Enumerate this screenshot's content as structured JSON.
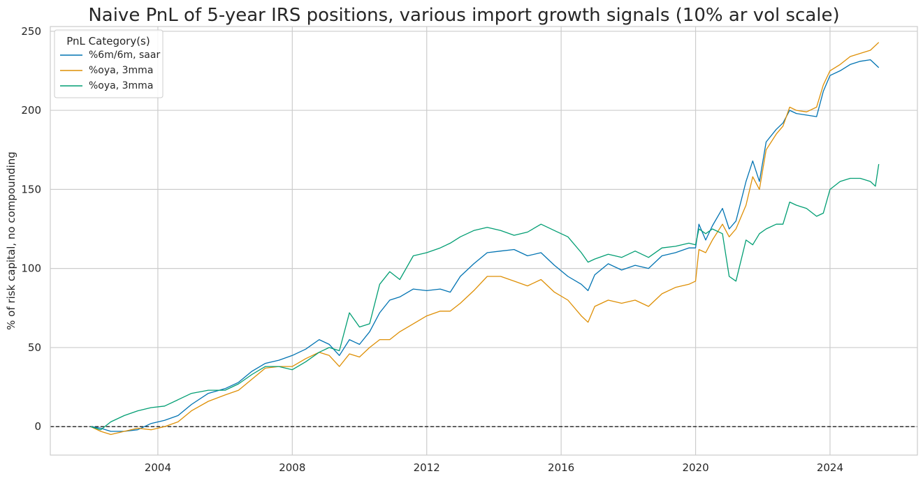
{
  "chart_data": {
    "type": "line",
    "title": "Naive PnL of 5-year IRS positions, various import growth signals (10% ar vol scale)",
    "xlabel": "",
    "ylabel": "% of risk capital, no compounding",
    "xlim": [
      2000.8,
      2026.6
    ],
    "ylim": [
      -18,
      253
    ],
    "x_ticks": [
      2004,
      2008,
      2012,
      2016,
      2020,
      2024
    ],
    "x_tick_labels": [
      "2004",
      "2008",
      "2012",
      "2016",
      "2020",
      "2024"
    ],
    "y_ticks": [
      0,
      50,
      100,
      150,
      200,
      250
    ],
    "y_tick_labels": [
      "0",
      "50",
      "100",
      "150",
      "200",
      "250"
    ],
    "grid": true,
    "zero_line": true,
    "legend": {
      "title": "PnL Category(s)",
      "position": "top-left"
    },
    "series": [
      {
        "name": "%6m/6m, saar",
        "color": "#0173b2",
        "points": [
          [
            2002.0,
            0
          ],
          [
            2002.3,
            -1
          ],
          [
            2002.6,
            -3
          ],
          [
            2003.0,
            -3
          ],
          [
            2003.4,
            -2
          ],
          [
            2003.8,
            2
          ],
          [
            2004.2,
            4
          ],
          [
            2004.6,
            7
          ],
          [
            2005.0,
            14
          ],
          [
            2005.5,
            21
          ],
          [
            2006.0,
            24
          ],
          [
            2006.4,
            28
          ],
          [
            2006.8,
            35
          ],
          [
            2007.2,
            40
          ],
          [
            2007.6,
            42
          ],
          [
            2008.0,
            45
          ],
          [
            2008.4,
            49
          ],
          [
            2008.8,
            55
          ],
          [
            2009.1,
            52
          ],
          [
            2009.4,
            45
          ],
          [
            2009.7,
            55
          ],
          [
            2010.0,
            52
          ],
          [
            2010.3,
            60
          ],
          [
            2010.6,
            72
          ],
          [
            2010.9,
            80
          ],
          [
            2011.2,
            82
          ],
          [
            2011.6,
            87
          ],
          [
            2012.0,
            86
          ],
          [
            2012.4,
            87
          ],
          [
            2012.7,
            85
          ],
          [
            2013.0,
            95
          ],
          [
            2013.4,
            103
          ],
          [
            2013.8,
            110
          ],
          [
            2014.2,
            111
          ],
          [
            2014.6,
            112
          ],
          [
            2015.0,
            108
          ],
          [
            2015.4,
            110
          ],
          [
            2015.8,
            102
          ],
          [
            2016.2,
            95
          ],
          [
            2016.6,
            90
          ],
          [
            2016.8,
            86
          ],
          [
            2017.0,
            96
          ],
          [
            2017.4,
            103
          ],
          [
            2017.8,
            99
          ],
          [
            2018.2,
            102
          ],
          [
            2018.6,
            100
          ],
          [
            2019.0,
            108
          ],
          [
            2019.4,
            110
          ],
          [
            2019.8,
            113
          ],
          [
            2020.0,
            113
          ],
          [
            2020.1,
            128
          ],
          [
            2020.3,
            118
          ],
          [
            2020.5,
            127
          ],
          [
            2020.8,
            138
          ],
          [
            2021.0,
            125
          ],
          [
            2021.2,
            130
          ],
          [
            2021.5,
            155
          ],
          [
            2021.7,
            168
          ],
          [
            2021.9,
            155
          ],
          [
            2022.1,
            180
          ],
          [
            2022.4,
            188
          ],
          [
            2022.6,
            192
          ],
          [
            2022.8,
            200
          ],
          [
            2023.0,
            198
          ],
          [
            2023.3,
            197
          ],
          [
            2023.6,
            196
          ],
          [
            2023.8,
            212
          ],
          [
            2024.0,
            222
          ],
          [
            2024.3,
            225
          ],
          [
            2024.6,
            229
          ],
          [
            2024.9,
            231
          ],
          [
            2025.2,
            232
          ],
          [
            2025.45,
            227
          ]
        ]
      },
      {
        "name": "%oya, 3mma",
        "color": "#de8f05",
        "points": [
          [
            2002.0,
            0
          ],
          [
            2002.3,
            -3
          ],
          [
            2002.6,
            -5
          ],
          [
            2003.0,
            -3
          ],
          [
            2003.4,
            -1
          ],
          [
            2003.8,
            -2
          ],
          [
            2004.2,
            0
          ],
          [
            2004.6,
            3
          ],
          [
            2005.0,
            10
          ],
          [
            2005.5,
            16
          ],
          [
            2006.0,
            20
          ],
          [
            2006.4,
            23
          ],
          [
            2006.8,
            30
          ],
          [
            2007.2,
            37
          ],
          [
            2007.6,
            38
          ],
          [
            2008.0,
            38
          ],
          [
            2008.4,
            43
          ],
          [
            2008.8,
            47
          ],
          [
            2009.1,
            45
          ],
          [
            2009.4,
            38
          ],
          [
            2009.7,
            46
          ],
          [
            2010.0,
            44
          ],
          [
            2010.3,
            50
          ],
          [
            2010.6,
            55
          ],
          [
            2010.9,
            55
          ],
          [
            2011.2,
            60
          ],
          [
            2011.6,
            65
          ],
          [
            2012.0,
            70
          ],
          [
            2012.4,
            73
          ],
          [
            2012.7,
            73
          ],
          [
            2013.0,
            78
          ],
          [
            2013.4,
            86
          ],
          [
            2013.8,
            95
          ],
          [
            2014.2,
            95
          ],
          [
            2014.6,
            92
          ],
          [
            2015.0,
            89
          ],
          [
            2015.4,
            93
          ],
          [
            2015.8,
            85
          ],
          [
            2016.2,
            80
          ],
          [
            2016.6,
            70
          ],
          [
            2016.8,
            66
          ],
          [
            2017.0,
            76
          ],
          [
            2017.4,
            80
          ],
          [
            2017.8,
            78
          ],
          [
            2018.2,
            80
          ],
          [
            2018.6,
            76
          ],
          [
            2019.0,
            84
          ],
          [
            2019.4,
            88
          ],
          [
            2019.8,
            90
          ],
          [
            2020.0,
            92
          ],
          [
            2020.1,
            112
          ],
          [
            2020.3,
            110
          ],
          [
            2020.5,
            118
          ],
          [
            2020.8,
            128
          ],
          [
            2021.0,
            120
          ],
          [
            2021.2,
            125
          ],
          [
            2021.5,
            140
          ],
          [
            2021.7,
            158
          ],
          [
            2021.9,
            150
          ],
          [
            2022.1,
            175
          ],
          [
            2022.4,
            185
          ],
          [
            2022.6,
            190
          ],
          [
            2022.8,
            202
          ],
          [
            2023.0,
            200
          ],
          [
            2023.3,
            199
          ],
          [
            2023.6,
            202
          ],
          [
            2023.8,
            216
          ],
          [
            2024.0,
            225
          ],
          [
            2024.3,
            229
          ],
          [
            2024.6,
            234
          ],
          [
            2024.9,
            236
          ],
          [
            2025.2,
            238
          ],
          [
            2025.45,
            243
          ]
        ]
      },
      {
        "name": "%oya, 3mma",
        "color": "#029e73",
        "points": [
          [
            2002.0,
            0
          ],
          [
            2002.3,
            -2
          ],
          [
            2002.6,
            3
          ],
          [
            2003.0,
            7
          ],
          [
            2003.4,
            10
          ],
          [
            2003.8,
            12
          ],
          [
            2004.2,
            13
          ],
          [
            2004.6,
            17
          ],
          [
            2005.0,
            21
          ],
          [
            2005.5,
            23
          ],
          [
            2006.0,
            23
          ],
          [
            2006.4,
            27
          ],
          [
            2006.8,
            33
          ],
          [
            2007.2,
            38
          ],
          [
            2007.6,
            38
          ],
          [
            2008.0,
            36
          ],
          [
            2008.4,
            41
          ],
          [
            2008.8,
            47
          ],
          [
            2009.1,
            50
          ],
          [
            2009.4,
            48
          ],
          [
            2009.7,
            72
          ],
          [
            2010.0,
            63
          ],
          [
            2010.3,
            65
          ],
          [
            2010.6,
            90
          ],
          [
            2010.9,
            98
          ],
          [
            2011.2,
            93
          ],
          [
            2011.6,
            108
          ],
          [
            2012.0,
            110
          ],
          [
            2012.4,
            113
          ],
          [
            2012.7,
            116
          ],
          [
            2013.0,
            120
          ],
          [
            2013.4,
            124
          ],
          [
            2013.8,
            126
          ],
          [
            2014.2,
            124
          ],
          [
            2014.6,
            121
          ],
          [
            2015.0,
            123
          ],
          [
            2015.4,
            128
          ],
          [
            2015.8,
            124
          ],
          [
            2016.2,
            120
          ],
          [
            2016.6,
            110
          ],
          [
            2016.8,
            104
          ],
          [
            2017.0,
            106
          ],
          [
            2017.4,
            109
          ],
          [
            2017.8,
            107
          ],
          [
            2018.2,
            111
          ],
          [
            2018.6,
            107
          ],
          [
            2019.0,
            113
          ],
          [
            2019.4,
            114
          ],
          [
            2019.8,
            116
          ],
          [
            2020.0,
            115
          ],
          [
            2020.1,
            125
          ],
          [
            2020.3,
            122
          ],
          [
            2020.5,
            125
          ],
          [
            2020.8,
            122
          ],
          [
            2021.0,
            95
          ],
          [
            2021.2,
            92
          ],
          [
            2021.5,
            118
          ],
          [
            2021.7,
            115
          ],
          [
            2021.9,
            122
          ],
          [
            2022.1,
            125
          ],
          [
            2022.4,
            128
          ],
          [
            2022.6,
            128
          ],
          [
            2022.8,
            142
          ],
          [
            2023.0,
            140
          ],
          [
            2023.3,
            138
          ],
          [
            2023.6,
            133
          ],
          [
            2023.8,
            135
          ],
          [
            2024.0,
            150
          ],
          [
            2024.3,
            155
          ],
          [
            2024.6,
            157
          ],
          [
            2024.9,
            157
          ],
          [
            2025.2,
            155
          ],
          [
            2025.35,
            152
          ],
          [
            2025.45,
            166
          ]
        ]
      }
    ]
  }
}
